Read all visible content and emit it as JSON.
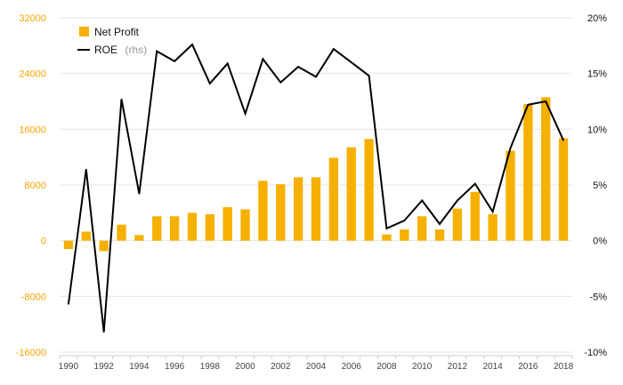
{
  "chart_data": {
    "type": "bar-line",
    "x": [
      1990,
      1991,
      1992,
      1993,
      1994,
      1995,
      1996,
      1997,
      1998,
      1999,
      2000,
      2001,
      2002,
      2003,
      2004,
      2005,
      2006,
      2007,
      2008,
      2009,
      2010,
      2011,
      2012,
      2013,
      2014,
      2015,
      2016,
      2017,
      2018
    ],
    "x_tick_labels": [
      "1990",
      "1992",
      "1994",
      "1996",
      "1998",
      "2000",
      "2002",
      "2004",
      "2006",
      "2008",
      "2010",
      "2012",
      "2014",
      "2016",
      "2018"
    ],
    "series": [
      {
        "name": "Net Profit",
        "kind": "bar",
        "axis": "left",
        "color": "#f5b000",
        "values": [
          -1200,
          1300,
          -1500,
          2300,
          800,
          3500,
          3500,
          4000,
          3800,
          4800,
          4500,
          8600,
          8100,
          9100,
          9100,
          11900,
          13400,
          14600,
          900,
          1600,
          3500,
          1600,
          4600,
          7000,
          3800,
          12900,
          19600,
          20600,
          14700
        ]
      },
      {
        "name": "ROE",
        "name_suffix": "(rhs)",
        "kind": "line",
        "axis": "right",
        "color": "#000000",
        "values": [
          -5.7,
          6.4,
          -8.2,
          12.7,
          4.2,
          17.0,
          16.1,
          17.6,
          14.1,
          15.9,
          11.4,
          16.3,
          14.2,
          15.6,
          14.7,
          17.2,
          16.0,
          14.8,
          1.1,
          1.8,
          3.6,
          1.5,
          3.6,
          5.1,
          2.6,
          8.3,
          12.2,
          12.5,
          9.0
        ]
      }
    ],
    "y_left": {
      "ylim": [
        -16000,
        32000
      ],
      "ticks": [
        32000,
        24000,
        16000,
        8000,
        0,
        -8000,
        -16000
      ],
      "tick_labels": [
        "32000",
        "24000",
        "16000",
        "8000",
        "0",
        "-8000",
        "-16000"
      ],
      "tick_color": "#f5a300"
    },
    "y_right": {
      "ylim": [
        -10,
        20
      ],
      "ticks": [
        20,
        15,
        10,
        5,
        0,
        -5,
        -10
      ],
      "tick_labels": [
        "20%",
        "15%",
        "10%",
        "5%",
        "0%",
        "-5%",
        "-10%"
      ]
    },
    "grid": true,
    "legend_placement": "top-left",
    "title": "",
    "xlabel": "",
    "ylabel": ""
  }
}
